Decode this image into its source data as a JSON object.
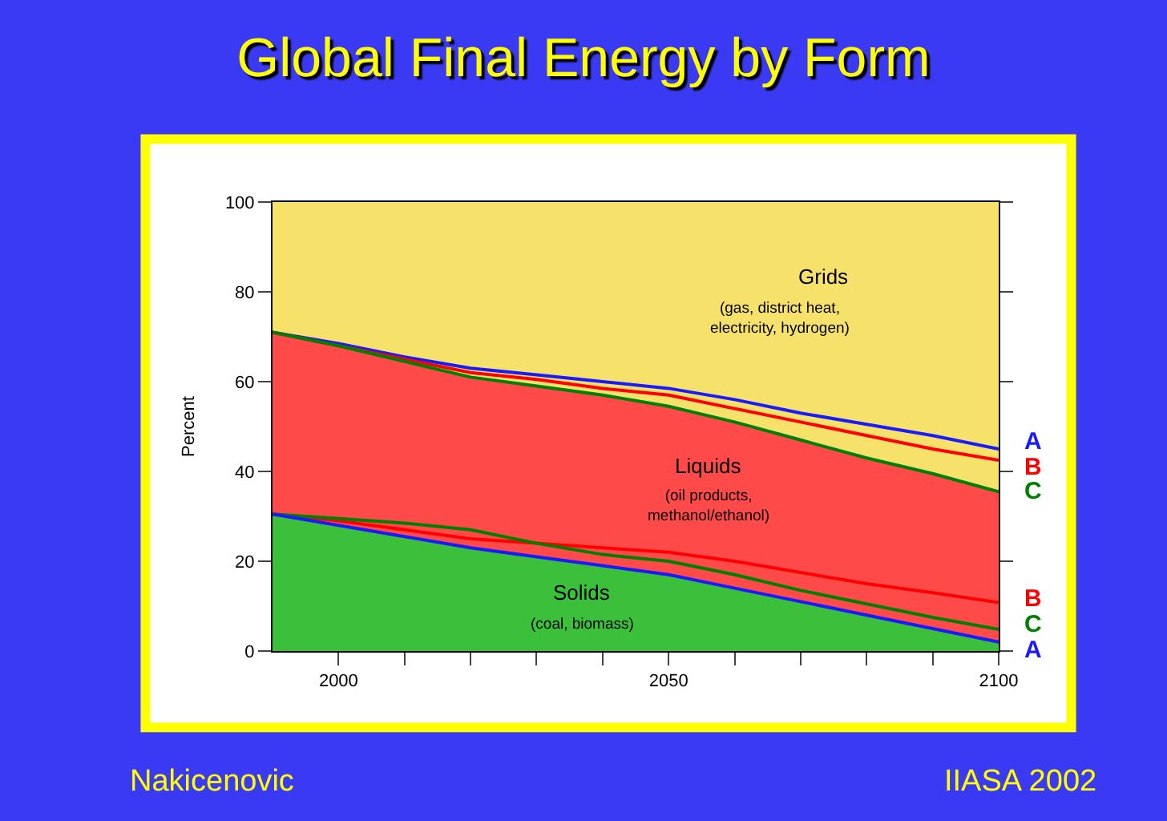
{
  "chart_data": {
    "type": "area",
    "title": "Global Final Energy by Form",
    "ylabel": "Percent",
    "x": [
      1990,
      2000,
      2010,
      2020,
      2030,
      2040,
      2050,
      2060,
      2070,
      2080,
      2090,
      2100
    ],
    "xlim": [
      1990,
      2100
    ],
    "xticks": [
      2000,
      {
        "value": 2010,
        "label": null
      },
      {
        "value": 2020,
        "label": null
      },
      {
        "value": 2030,
        "label": null
      },
      {
        "value": 2040,
        "label": null
      },
      2050,
      {
        "value": 2060,
        "label": null
      },
      {
        "value": 2070,
        "label": null
      },
      {
        "value": 2080,
        "label": null
      },
      {
        "value": 2090,
        "label": null
      },
      2100
    ],
    "ylim": [
      0,
      100
    ],
    "yticks": [
      0,
      20,
      40,
      60,
      80,
      100
    ],
    "legend": false,
    "series": [
      {
        "color": "#f6e26a",
        "values": [
          100,
          100,
          100,
          100,
          100,
          100,
          100,
          100,
          100,
          100,
          100,
          100
        ]
      },
      {
        "color": "#ff4a4a",
        "values": [
          71,
          68,
          64.5,
          61,
          59,
          57,
          54.5,
          51,
          47,
          43,
          39.5,
          35.5
        ]
      },
      {
        "color": "#3cc03c",
        "values": [
          30.5,
          28,
          25.5,
          23,
          21,
          19,
          17,
          14,
          11,
          8,
          5,
          2
        ]
      },
      {
        "type": "line",
        "name": "A",
        "color": "#1a1aff",
        "values": [
          71,
          68.5,
          65.5,
          63,
          61.5,
          60,
          58.5,
          56,
          53,
          50.5,
          48,
          45
        ]
      },
      {
        "type": "line",
        "name": "B",
        "color": "#ff0000",
        "values": [
          71,
          68,
          65,
          62,
          60.5,
          58.5,
          57,
          54,
          51,
          48,
          45,
          42.5
        ]
      },
      {
        "type": "line",
        "name": "C",
        "color": "#008000",
        "values": [
          71,
          68,
          64.5,
          61,
          59,
          57,
          54.5,
          51,
          47,
          43,
          39.5,
          35.5
        ]
      },
      {
        "type": "line",
        "name": "B",
        "color": "#ff0000",
        "values": [
          30.5,
          29,
          27,
          25,
          24,
          23,
          22,
          20,
          17.5,
          15,
          13,
          10.8
        ]
      },
      {
        "type": "line",
        "name": "C",
        "color": "#008000",
        "values": [
          30.5,
          29.5,
          28.5,
          27,
          24,
          21.5,
          20,
          17,
          13.5,
          10.5,
          7.5,
          4.8
        ]
      },
      {
        "type": "line",
        "name": "A",
        "color": "#1a1aff",
        "values": [
          30.5,
          28,
          25.5,
          23,
          21,
          19,
          17,
          14,
          11,
          8,
          5,
          2
        ]
      }
    ],
    "annotations": [
      "Grids",
      "(gas, district heat,\nelectricity, hydrogen)",
      "Liquids",
      "(oil products,\nmethanol/ethanol)",
      "Solids",
      "(coal, biomass)",
      "Nakicenovic",
      "IIASA 2002"
    ]
  }
}
